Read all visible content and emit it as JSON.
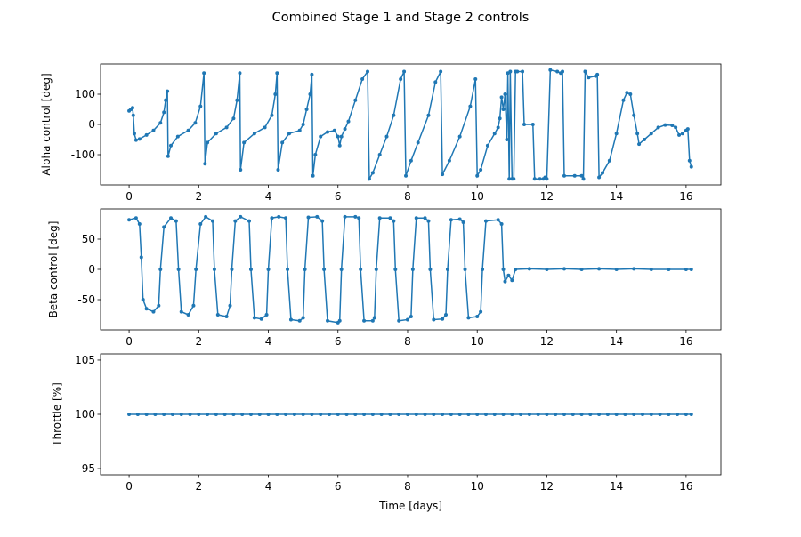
{
  "title": "Combined Stage 1 and Stage 2 controls",
  "chart_data": [
    {
      "type": "line",
      "ylabel": "Alpha control [deg]",
      "color": "#1f77b4",
      "xlim": [
        -0.82,
        17.0
      ],
      "xticks": [
        0,
        2,
        4,
        6,
        8,
        10,
        12,
        14,
        16
      ],
      "ylim": [
        -200,
        200
      ],
      "yticks": [
        -100,
        0,
        100
      ],
      "x": [
        0.0,
        0.05,
        0.1,
        0.12,
        0.15,
        0.2,
        0.3,
        0.5,
        0.7,
        0.9,
        1.0,
        1.05,
        1.1,
        1.12,
        1.2,
        1.4,
        1.7,
        1.9,
        2.05,
        2.15,
        2.18,
        2.25,
        2.5,
        2.8,
        3.0,
        3.1,
        3.18,
        3.2,
        3.3,
        3.6,
        3.9,
        4.1,
        4.2,
        4.25,
        4.28,
        4.4,
        4.6,
        4.9,
        5.0,
        5.1,
        5.2,
        5.25,
        5.28,
        5.35,
        5.5,
        5.7,
        5.9,
        6.0,
        6.05,
        6.1,
        6.2,
        6.3,
        6.5,
        6.7,
        6.85,
        6.9,
        7.0,
        7.2,
        7.4,
        7.6,
        7.8,
        7.9,
        7.95,
        8.1,
        8.3,
        8.6,
        8.8,
        8.95,
        9.0,
        9.2,
        9.5,
        9.8,
        9.95,
        10.0,
        10.1,
        10.3,
        10.5,
        10.6,
        10.65,
        10.7,
        10.75,
        10.8,
        10.85,
        10.88,
        10.92,
        10.95,
        11.0,
        11.05,
        11.1,
        11.15,
        11.3,
        11.35,
        11.6,
        11.65,
        11.8,
        11.9,
        11.95,
        12.0,
        12.1,
        12.3,
        12.4,
        12.45,
        12.5,
        12.8,
        13.0,
        13.05,
        13.1,
        13.2,
        13.4,
        13.45,
        13.5,
        13.6,
        13.8,
        14.0,
        14.2,
        14.3,
        14.4,
        14.5,
        14.6,
        14.65,
        14.8,
        15.0,
        15.2,
        15.4,
        15.6,
        15.7,
        15.8,
        15.9,
        16.0,
        16.05,
        16.1,
        16.15
      ],
      "values": [
        45,
        50,
        55,
        30,
        -30,
        -52,
        -48,
        -35,
        -20,
        5,
        40,
        80,
        110,
        -105,
        -70,
        -40,
        -20,
        5,
        60,
        170,
        -130,
        -60,
        -30,
        -10,
        20,
        80,
        170,
        -150,
        -60,
        -30,
        -10,
        30,
        100,
        170,
        -150,
        -60,
        -30,
        -20,
        0,
        50,
        100,
        165,
        -170,
        -100,
        -40,
        -25,
        -20,
        -40,
        -70,
        -40,
        -15,
        10,
        80,
        150,
        175,
        -180,
        -160,
        -100,
        -40,
        30,
        150,
        175,
        -170,
        -120,
        -60,
        30,
        140,
        175,
        -165,
        -120,
        -40,
        60,
        150,
        -170,
        -150,
        -70,
        -30,
        -10,
        20,
        90,
        50,
        100,
        -50,
        170,
        -180,
        175,
        -180,
        -180,
        175,
        175,
        175,
        0,
        0,
        -180,
        -180,
        -180,
        -175,
        -180,
        180,
        175,
        170,
        175,
        -170,
        -170,
        -170,
        -180,
        175,
        155,
        160,
        165,
        -175,
        -160,
        -120,
        -30,
        80,
        105,
        100,
        30,
        -30,
        -65,
        -50,
        -30,
        -10,
        -2,
        -3,
        -10,
        -35,
        -30,
        -20,
        -15,
        -120,
        -140
      ]
    },
    {
      "type": "line",
      "ylabel": "Beta control [deg]",
      "color": "#1f77b4",
      "xlim": [
        -0.82,
        17.0
      ],
      "xticks": [
        0,
        2,
        4,
        6,
        8,
        10,
        12,
        14,
        16
      ],
      "ylim": [
        -100,
        100
      ],
      "yticks": [
        -50,
        0,
        50
      ],
      "x": [
        0,
        0.2,
        0.3,
        0.35,
        0.4,
        0.5,
        0.7,
        0.85,
        0.9,
        1.0,
        1.2,
        1.35,
        1.42,
        1.5,
        1.7,
        1.85,
        1.92,
        2.05,
        2.2,
        2.4,
        2.45,
        2.55,
        2.8,
        2.9,
        2.95,
        3.05,
        3.2,
        3.45,
        3.5,
        3.6,
        3.8,
        3.95,
        4.0,
        4.1,
        4.3,
        4.5,
        4.55,
        4.65,
        4.9,
        5.0,
        5.05,
        5.15,
        5.4,
        5.55,
        5.6,
        5.7,
        6.0,
        6.05,
        6.1,
        6.2,
        6.5,
        6.6,
        6.65,
        6.75,
        7.0,
        7.05,
        7.1,
        7.2,
        7.5,
        7.6,
        7.65,
        7.75,
        8.0,
        8.1,
        8.15,
        8.25,
        8.5,
        8.6,
        8.65,
        8.75,
        9.0,
        9.1,
        9.15,
        9.25,
        9.5,
        9.6,
        9.65,
        9.75,
        10.0,
        10.1,
        10.15,
        10.25,
        10.6,
        10.7,
        10.75,
        10.8,
        10.9,
        11.0,
        11.1,
        11.5,
        12,
        12.5,
        13,
        13.5,
        14,
        14.5,
        15,
        15.5,
        16,
        16.15
      ],
      "values": [
        82,
        85,
        75,
        20,
        -50,
        -65,
        -70,
        -60,
        0,
        70,
        85,
        80,
        0,
        -70,
        -75,
        -60,
        0,
        75,
        87,
        80,
        0,
        -75,
        -78,
        -60,
        0,
        80,
        87,
        80,
        0,
        -80,
        -82,
        -75,
        0,
        85,
        87,
        85,
        0,
        -83,
        -85,
        -80,
        0,
        86,
        87,
        80,
        0,
        -85,
        -88,
        -85,
        0,
        87,
        87,
        85,
        0,
        -85,
        -85,
        -80,
        0,
        85,
        85,
        80,
        0,
        -85,
        -83,
        -78,
        0,
        85,
        85,
        80,
        0,
        -83,
        -82,
        -75,
        0,
        82,
        83,
        78,
        0,
        -80,
        -78,
        -70,
        0,
        80,
        82,
        75,
        0,
        -20,
        -10,
        -18,
        0,
        1,
        0,
        1,
        0,
        1,
        0,
        1,
        0,
        0,
        0,
        0
      ]
    },
    {
      "type": "line",
      "ylabel": "Throttle [%]",
      "xlabel": "Time [days]",
      "color": "#1f77b4",
      "xlim": [
        -0.82,
        17.0
      ],
      "xticks": [
        0,
        2,
        4,
        6,
        8,
        10,
        12,
        14,
        16
      ],
      "ylim": [
        94.43,
        105.57
      ],
      "yticks": [
        95,
        100,
        105
      ],
      "x": [
        0,
        0.25,
        0.5,
        0.75,
        1,
        1.25,
        1.5,
        1.75,
        2,
        2.25,
        2.5,
        2.75,
        3,
        3.25,
        3.5,
        3.75,
        4,
        4.25,
        4.5,
        4.75,
        5,
        5.25,
        5.5,
        5.75,
        6,
        6.25,
        6.5,
        6.75,
        7,
        7.25,
        7.5,
        7.75,
        8,
        8.25,
        8.5,
        8.75,
        9,
        9.25,
        9.5,
        9.75,
        10,
        10.25,
        10.5,
        10.75,
        11,
        11.25,
        11.5,
        11.75,
        12,
        12.25,
        12.5,
        12.75,
        13,
        13.25,
        13.5,
        13.75,
        14,
        14.25,
        14.5,
        14.75,
        15,
        15.25,
        15.5,
        15.75,
        16,
        16.15
      ],
      "values": [
        100,
        100,
        100,
        100,
        100,
        100,
        100,
        100,
        100,
        100,
        100,
        100,
        100,
        100,
        100,
        100,
        100,
        100,
        100,
        100,
        100,
        100,
        100,
        100,
        100,
        100,
        100,
        100,
        100,
        100,
        100,
        100,
        100,
        100,
        100,
        100,
        100,
        100,
        100,
        100,
        100,
        100,
        100,
        100,
        100,
        100,
        100,
        100,
        100,
        100,
        100,
        100,
        100,
        100,
        100,
        100,
        100,
        100,
        100,
        100,
        100,
        100,
        100,
        100,
        100,
        100
      ]
    }
  ]
}
